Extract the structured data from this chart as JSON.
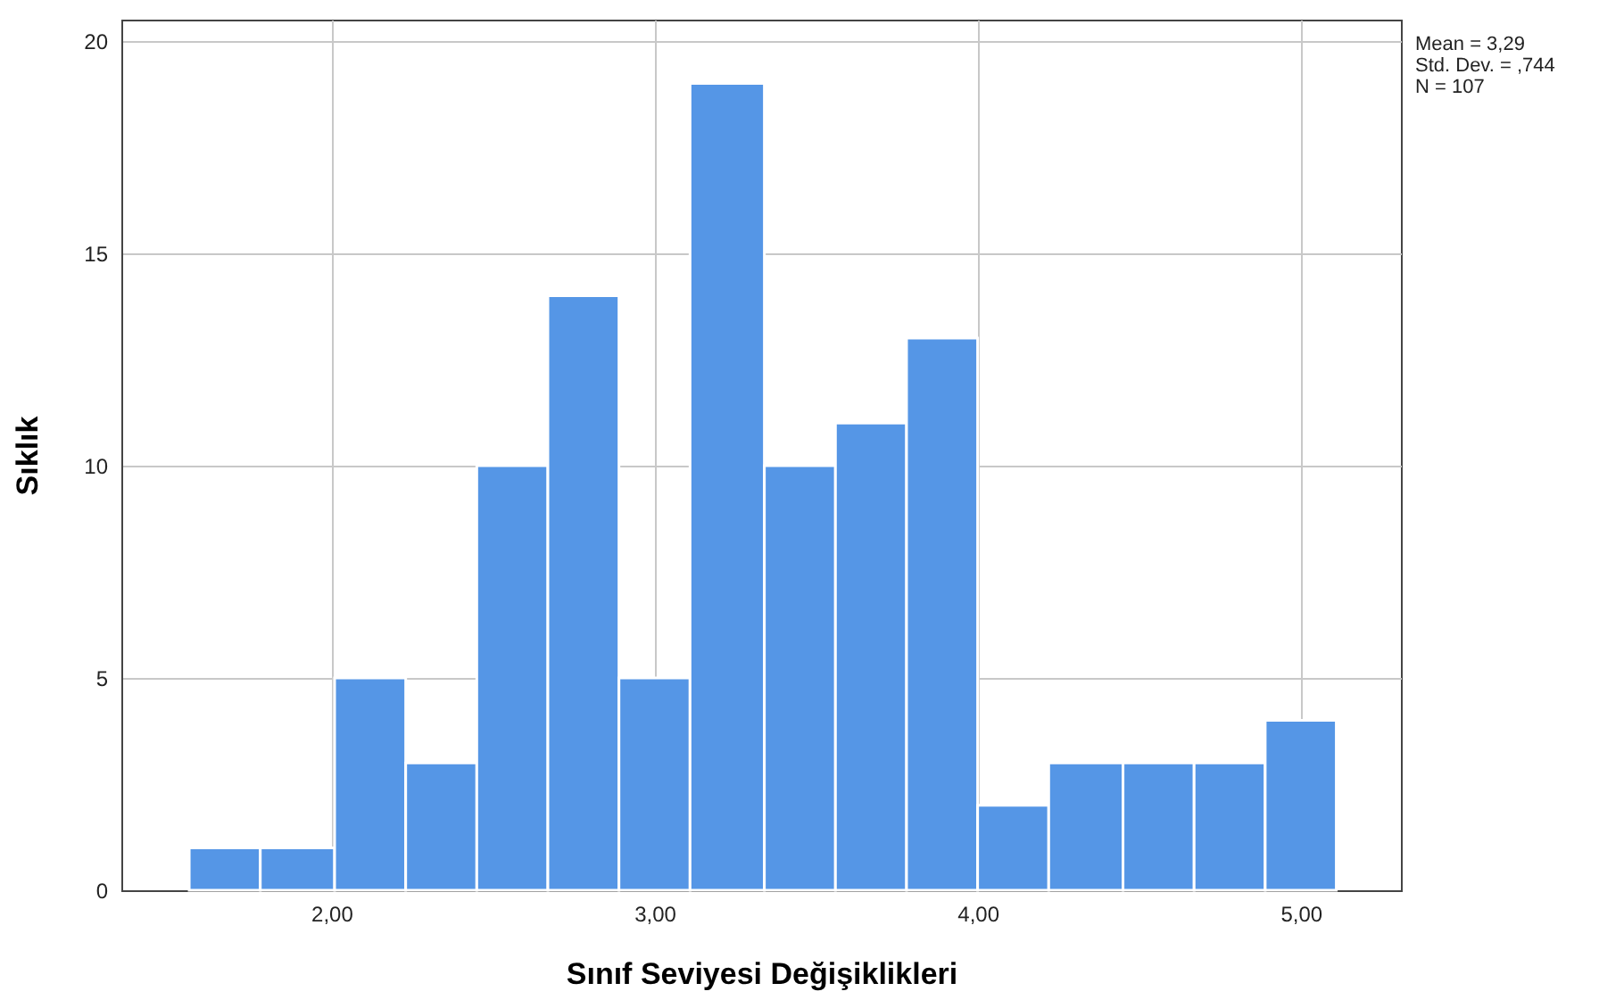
{
  "chart_data": {
    "type": "histogram",
    "xlabel": "Sınıf Seviyesi Değişiklikleri",
    "ylabel": "Sıklık",
    "bins": [
      1.56,
      1.78,
      2.01,
      2.23,
      2.45,
      2.67,
      2.89,
      3.11,
      3.34,
      3.56,
      3.78,
      4.0,
      4.22,
      4.45,
      4.67,
      4.89,
      5.11
    ],
    "values": [
      1,
      1,
      5,
      3,
      10,
      14,
      5,
      19,
      10,
      11,
      13,
      2,
      3,
      3,
      3,
      4
    ],
    "color": "#5596e6",
    "xlim": [
      1.35,
      5.31
    ],
    "xticks": [
      {
        "value": 2,
        "label": "2,00"
      },
      {
        "value": 3,
        "label": "3,00"
      },
      {
        "value": 4,
        "label": "4,00"
      },
      {
        "value": 5,
        "label": "5,00"
      }
    ],
    "ylim": [
      0,
      20.5
    ],
    "yticks": [
      0,
      5,
      10,
      15,
      20
    ],
    "grid": true,
    "annotations": [
      "Mean = 3,29",
      "Std. Dev. = ,744",
      "N = 107"
    ]
  }
}
